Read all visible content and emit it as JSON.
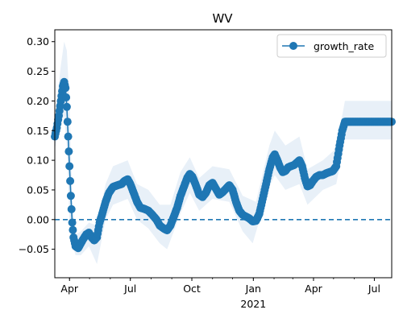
{
  "chart_data": {
    "type": "line",
    "title": "WV",
    "xlabel": "",
    "ylabel": "",
    "x_ticks": [
      {
        "date": "2020-04-01",
        "label": "Apr"
      },
      {
        "date": "2020-07-01",
        "label": "Jul"
      },
      {
        "date": "2020-10-01",
        "label": "Oct"
      },
      {
        "date": "2021-01-01",
        "label": "Jan",
        "sublabel": "2021"
      },
      {
        "date": "2021-04-01",
        "label": "Apr"
      },
      {
        "date": "2021-07-01",
        "label": "Jul"
      }
    ],
    "y_ticks": [
      "−0.05",
      "0.00",
      "0.05",
      "0.10",
      "0.15",
      "0.20",
      "0.25",
      "0.30"
    ],
    "xlim": [
      "2020-03-10",
      "2021-07-27"
    ],
    "ylim": [
      -0.098,
      0.32
    ],
    "legend_position": "top-right",
    "reference_line": {
      "y": 0.0,
      "style": "dashed"
    },
    "series": [
      {
        "name": "growth_rate",
        "color": "#1f77b4",
        "band_color": "#e8f0f8",
        "marker": "circle",
        "points": [
          [
            "2020-03-10",
            0.14
          ],
          [
            "2020-03-13",
            0.155
          ],
          [
            "2020-03-16",
            0.175
          ],
          [
            "2020-03-19",
            0.2
          ],
          [
            "2020-03-22",
            0.225
          ],
          [
            "2020-03-24",
            0.232
          ],
          [
            "2020-03-26",
            0.222
          ],
          [
            "2020-03-28",
            0.19
          ],
          [
            "2020-03-30",
            0.14
          ],
          [
            "2020-04-01",
            0.09
          ],
          [
            "2020-04-03",
            0.04
          ],
          [
            "2020-04-05",
            -0.005
          ],
          [
            "2020-04-07",
            -0.03
          ],
          [
            "2020-04-10",
            -0.045
          ],
          [
            "2020-04-14",
            -0.048
          ],
          [
            "2020-04-18",
            -0.04
          ],
          [
            "2020-04-22",
            -0.032
          ],
          [
            "2020-04-26",
            -0.025
          ],
          [
            "2020-04-30",
            -0.022
          ],
          [
            "2020-05-04",
            -0.03
          ],
          [
            "2020-05-08",
            -0.035
          ],
          [
            "2020-05-12",
            -0.03
          ],
          [
            "2020-05-16",
            -0.005
          ],
          [
            "2020-05-20",
            0.01
          ],
          [
            "2020-05-25",
            0.03
          ],
          [
            "2020-05-30",
            0.045
          ],
          [
            "2020-06-05",
            0.055
          ],
          [
            "2020-06-12",
            0.058
          ],
          [
            "2020-06-18",
            0.06
          ],
          [
            "2020-06-22",
            0.065
          ],
          [
            "2020-06-27",
            0.068
          ],
          [
            "2020-07-01",
            0.06
          ],
          [
            "2020-07-06",
            0.045
          ],
          [
            "2020-07-11",
            0.03
          ],
          [
            "2020-07-16",
            0.02
          ],
          [
            "2020-07-22",
            0.018
          ],
          [
            "2020-07-28",
            0.015
          ],
          [
            "2020-08-03",
            0.008
          ],
          [
            "2020-08-09",
            0.0
          ],
          [
            "2020-08-14",
            -0.01
          ],
          [
            "2020-08-20",
            -0.015
          ],
          [
            "2020-08-25",
            -0.018
          ],
          [
            "2020-08-30",
            -0.01
          ],
          [
            "2020-09-04",
            0.005
          ],
          [
            "2020-09-09",
            0.02
          ],
          [
            "2020-09-14",
            0.04
          ],
          [
            "2020-09-19",
            0.055
          ],
          [
            "2020-09-24",
            0.07
          ],
          [
            "2020-09-28",
            0.077
          ],
          [
            "2020-10-02",
            0.072
          ],
          [
            "2020-10-07",
            0.058
          ],
          [
            "2020-10-12",
            0.042
          ],
          [
            "2020-10-17",
            0.038
          ],
          [
            "2020-10-22",
            0.045
          ],
          [
            "2020-10-27",
            0.058
          ],
          [
            "2020-11-01",
            0.062
          ],
          [
            "2020-11-06",
            0.052
          ],
          [
            "2020-11-11",
            0.042
          ],
          [
            "2020-11-16",
            0.046
          ],
          [
            "2020-11-21",
            0.052
          ],
          [
            "2020-11-26",
            0.058
          ],
          [
            "2020-12-01",
            0.05
          ],
          [
            "2020-12-06",
            0.03
          ],
          [
            "2020-12-11",
            0.015
          ],
          [
            "2020-12-16",
            0.008
          ],
          [
            "2020-12-21",
            0.005
          ],
          [
            "2020-12-26",
            0.002
          ],
          [
            "2020-12-31",
            -0.003
          ],
          [
            "2021-01-05",
            -0.002
          ],
          [
            "2021-01-10",
            0.01
          ],
          [
            "2021-01-15",
            0.035
          ],
          [
            "2021-01-20",
            0.06
          ],
          [
            "2021-01-25",
            0.085
          ],
          [
            "2021-01-30",
            0.105
          ],
          [
            "2021-02-02",
            0.11
          ],
          [
            "2021-02-06",
            0.1
          ],
          [
            "2021-02-10",
            0.088
          ],
          [
            "2021-02-14",
            0.08
          ],
          [
            "2021-02-18",
            0.082
          ],
          [
            "2021-02-22",
            0.088
          ],
          [
            "2021-02-26",
            0.09
          ],
          [
            "2021-03-03",
            0.092
          ],
          [
            "2021-03-07",
            0.096
          ],
          [
            "2021-03-11",
            0.1
          ],
          [
            "2021-03-15",
            0.09
          ],
          [
            "2021-03-19",
            0.07
          ],
          [
            "2021-03-23",
            0.056
          ],
          [
            "2021-03-27",
            0.058
          ],
          [
            "2021-03-31",
            0.065
          ],
          [
            "2021-04-05",
            0.072
          ],
          [
            "2021-04-10",
            0.075
          ],
          [
            "2021-04-15",
            0.075
          ],
          [
            "2021-04-20",
            0.078
          ],
          [
            "2021-04-25",
            0.08
          ],
          [
            "2021-04-30",
            0.082
          ],
          [
            "2021-05-05",
            0.09
          ],
          [
            "2021-05-10",
            0.125
          ],
          [
            "2021-05-14",
            0.15
          ],
          [
            "2021-05-18",
            0.165
          ],
          [
            "2021-05-25",
            0.165
          ],
          [
            "2021-06-05",
            0.165
          ],
          [
            "2021-06-20",
            0.165
          ],
          [
            "2021-07-10",
            0.165
          ],
          [
            "2021-07-27",
            0.165
          ]
        ],
        "band_upper": [
          [
            "2020-03-10",
            0.17
          ],
          [
            "2020-03-19",
            0.26
          ],
          [
            "2020-03-24",
            0.3
          ],
          [
            "2020-03-28",
            0.285
          ],
          [
            "2020-04-01",
            0.2
          ],
          [
            "2020-04-05",
            0.04
          ],
          [
            "2020-04-10",
            -0.025
          ],
          [
            "2020-04-18",
            -0.02
          ],
          [
            "2020-04-30",
            -0.005
          ],
          [
            "2020-05-12",
            -0.01
          ],
          [
            "2020-05-25",
            0.06
          ],
          [
            "2020-06-05",
            0.09
          ],
          [
            "2020-06-27",
            0.1
          ],
          [
            "2020-07-11",
            0.06
          ],
          [
            "2020-07-28",
            0.05
          ],
          [
            "2020-08-14",
            0.025
          ],
          [
            "2020-08-30",
            0.025
          ],
          [
            "2020-09-14",
            0.08
          ],
          [
            "2020-09-28",
            0.105
          ],
          [
            "2020-10-12",
            0.07
          ],
          [
            "2020-11-01",
            0.09
          ],
          [
            "2020-11-26",
            0.085
          ],
          [
            "2020-12-16",
            0.04
          ],
          [
            "2021-01-05",
            0.03
          ],
          [
            "2021-01-25",
            0.125
          ],
          [
            "2021-02-02",
            0.15
          ],
          [
            "2021-02-18",
            0.125
          ],
          [
            "2021-03-11",
            0.14
          ],
          [
            "2021-03-23",
            0.085
          ],
          [
            "2021-04-15",
            0.1
          ],
          [
            "2021-05-05",
            0.12
          ],
          [
            "2021-05-18",
            0.2
          ],
          [
            "2021-07-27",
            0.2
          ]
        ],
        "band_lower": [
          [
            "2020-03-10",
            0.12
          ],
          [
            "2020-03-19",
            0.16
          ],
          [
            "2020-03-24",
            0.175
          ],
          [
            "2020-03-28",
            0.12
          ],
          [
            "2020-04-01",
            0.0
          ],
          [
            "2020-04-05",
            -0.04
          ],
          [
            "2020-04-10",
            -0.06
          ],
          [
            "2020-04-18",
            -0.06
          ],
          [
            "2020-04-30",
            -0.045
          ],
          [
            "2020-05-12",
            -0.075
          ],
          [
            "2020-05-25",
            0.0
          ],
          [
            "2020-06-05",
            0.025
          ],
          [
            "2020-06-27",
            0.035
          ],
          [
            "2020-07-11",
            0.0
          ],
          [
            "2020-07-28",
            -0.015
          ],
          [
            "2020-08-14",
            -0.04
          ],
          [
            "2020-08-25",
            -0.05
          ],
          [
            "2020-09-14",
            0.01
          ],
          [
            "2020-09-28",
            0.045
          ],
          [
            "2020-10-12",
            0.015
          ],
          [
            "2020-11-01",
            0.035
          ],
          [
            "2020-11-26",
            0.03
          ],
          [
            "2020-12-16",
            -0.02
          ],
          [
            "2020-12-31",
            -0.04
          ],
          [
            "2021-01-25",
            0.055
          ],
          [
            "2021-02-02",
            0.075
          ],
          [
            "2021-02-18",
            0.05
          ],
          [
            "2021-03-11",
            0.06
          ],
          [
            "2021-03-23",
            0.025
          ],
          [
            "2021-04-15",
            0.05
          ],
          [
            "2021-05-05",
            0.06
          ],
          [
            "2021-05-18",
            0.135
          ],
          [
            "2021-07-27",
            0.135
          ]
        ]
      }
    ]
  }
}
